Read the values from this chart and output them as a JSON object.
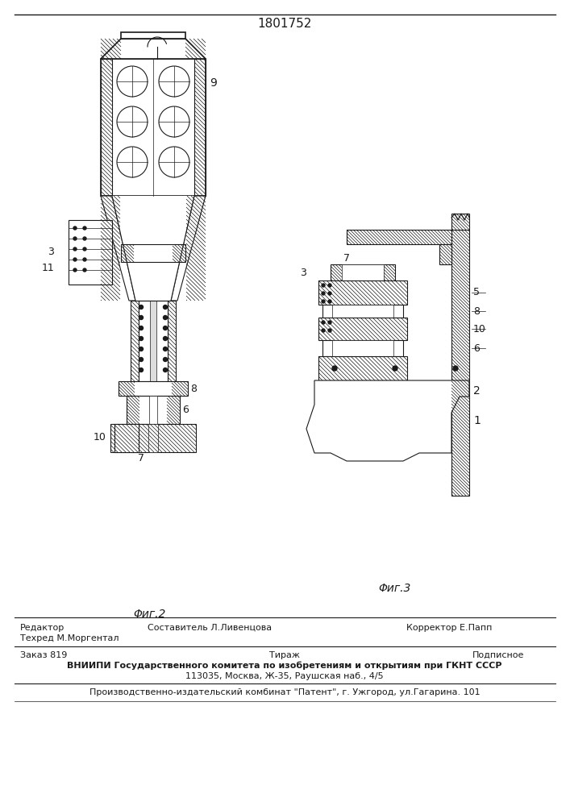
{
  "patent_number": "1801752",
  "fig2_label": "Φиг.2",
  "fig3_label": "Φиг.3",
  "editor_label": "Редактор",
  "compiler_label": "Составитель Л.Ливенцова",
  "techred_label": "Техред М.Моргентал",
  "corrector_label": "Корректор Е.Папп",
  "order_label": "Заказ 819",
  "tirazh_label": "Тираж",
  "podpisnoe_label": "Подписное",
  "vniipи_line1": "ВНИИПИ Государственного комитета по изобретениям и открытиям при ГКНТ СССР",
  "vniipи_line2": "113035, Москва, Ж-35, Раушская наб., 4/5",
  "proizv_line": "Производственно-издательский комбинат \"Патент\", г. Ужгород, ул.Гагарина. 101",
  "bg_color": "#ffffff",
  "line_color": "#1a1a1a"
}
